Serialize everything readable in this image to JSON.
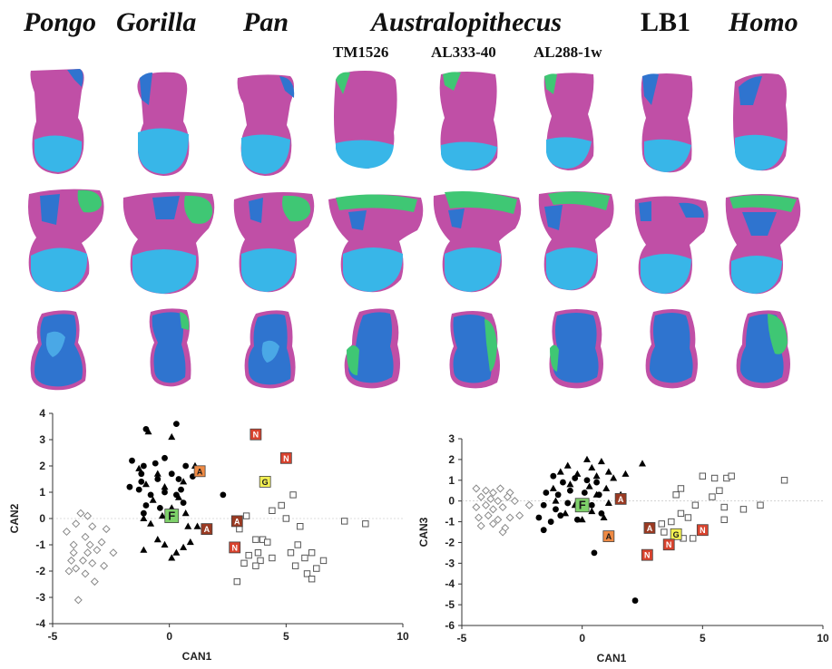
{
  "header": {
    "taxa": [
      "Pongo",
      "Gorilla",
      "Pan",
      "Australopithecus",
      "LB1",
      "Homo"
    ],
    "specimens": [
      "TM1526",
      "AL333-40",
      "AL288-1w"
    ]
  },
  "colors": {
    "articular_facet": "#c04fa6",
    "navicular_facet": "#38b6e8",
    "cuboid_facet": "#2f74cf",
    "medial_facet": "#3fc774",
    "marker_A": "#ef8a44",
    "marker_N": "#d9432e",
    "marker_G": "#f2ef52",
    "marker_F": "#7ed16a",
    "marker_dark_A": "#9a3a22"
  },
  "chart_data": [
    {
      "type": "scatter",
      "xlabel": "CAN1",
      "ylabel": "CAN2",
      "xlim": [
        -5,
        10
      ],
      "ylim": [
        -4,
        4
      ],
      "xticks": [
        -5,
        0,
        5,
        10
      ],
      "yticks": [
        -4,
        -3,
        -2,
        -1,
        0,
        1,
        2,
        3,
        4
      ],
      "series": [
        {
          "marker": "circle",
          "points": [
            [
              -1.0,
              3.4
            ],
            [
              0.3,
              3.6
            ],
            [
              -1.6,
              2.2
            ],
            [
              -1.1,
              2.0
            ],
            [
              -0.6,
              2.1
            ],
            [
              -0.2,
              2.3
            ],
            [
              0.7,
              2.0
            ],
            [
              -1.2,
              1.7
            ],
            [
              -0.5,
              1.5
            ],
            [
              0.1,
              1.7
            ],
            [
              0.4,
              1.5
            ],
            [
              1.0,
              1.6
            ],
            [
              -1.7,
              1.2
            ],
            [
              -1.3,
              1.1
            ],
            [
              -0.8,
              0.9
            ],
            [
              -0.2,
              1.0
            ],
            [
              0.3,
              0.9
            ],
            [
              -1.0,
              0.5
            ],
            [
              -0.4,
              0.4
            ],
            [
              0.6,
              0.6
            ],
            [
              -1.1,
              0.2
            ],
            [
              2.3,
              0.9
            ],
            [
              -1.2,
              1.4
            ],
            [
              0.5,
              1.1
            ]
          ]
        },
        {
          "marker": "triangle",
          "points": [
            [
              -0.9,
              3.3
            ],
            [
              0.1,
              3.1
            ],
            [
              -1.3,
              1.9
            ],
            [
              -0.5,
              1.7
            ],
            [
              0.6,
              1.4
            ],
            [
              -1.0,
              1.3
            ],
            [
              -0.2,
              1.2
            ],
            [
              0.4,
              0.8
            ],
            [
              -0.7,
              0.7
            ],
            [
              0.1,
              0.4
            ],
            [
              0.7,
              0.2
            ],
            [
              -0.3,
              0.1
            ],
            [
              -1.1,
              0.0
            ],
            [
              0.8,
              -0.3
            ],
            [
              1.2,
              -0.3
            ],
            [
              -0.2,
              -1.0
            ],
            [
              0.3,
              -1.3
            ],
            [
              -1.1,
              -1.2
            ],
            [
              -0.5,
              -0.8
            ],
            [
              0.9,
              -0.9
            ],
            [
              0.1,
              -1.5
            ],
            [
              -0.8,
              -0.2
            ],
            [
              1.1,
              2.0
            ],
            [
              0.6,
              -1.1
            ]
          ]
        },
        {
          "marker": "open-diamond",
          "points": [
            [
              -4.3,
              -2.0
            ],
            [
              -4.0,
              -1.9
            ],
            [
              -3.7,
              -1.6
            ],
            [
              -3.5,
              -1.3
            ],
            [
              -4.1,
              -1.0
            ],
            [
              -3.6,
              -0.7
            ],
            [
              -3.3,
              -0.3
            ],
            [
              -4.0,
              -0.2
            ],
            [
              -3.5,
              0.1
            ],
            [
              -3.8,
              0.2
            ],
            [
              -3.4,
              -1.0
            ],
            [
              -3.1,
              -1.2
            ],
            [
              -2.7,
              -0.4
            ],
            [
              -2.4,
              -1.3
            ],
            [
              -2.8,
              -1.8
            ],
            [
              -3.6,
              -2.1
            ],
            [
              -3.2,
              -2.4
            ],
            [
              -3.9,
              -3.1
            ],
            [
              -4.2,
              -1.6
            ],
            [
              -3.3,
              -1.7
            ],
            [
              -2.9,
              -0.9
            ],
            [
              -4.4,
              -0.5
            ],
            [
              -4.1,
              -1.3
            ]
          ]
        },
        {
          "marker": "open-square",
          "points": [
            [
              3.0,
              -0.4
            ],
            [
              3.3,
              0.1
            ],
            [
              4.4,
              0.3
            ],
            [
              4.8,
              0.5
            ],
            [
              5.3,
              0.9
            ],
            [
              5.0,
              0.0
            ],
            [
              5.6,
              -0.3
            ],
            [
              4.0,
              -0.8
            ],
            [
              3.7,
              -0.8
            ],
            [
              4.2,
              -0.9
            ],
            [
              3.4,
              -1.4
            ],
            [
              3.8,
              -1.3
            ],
            [
              3.9,
              -1.6
            ],
            [
              4.4,
              -1.5
            ],
            [
              3.2,
              -1.7
            ],
            [
              3.7,
              -1.8
            ],
            [
              5.5,
              -1.0
            ],
            [
              5.2,
              -1.3
            ],
            [
              5.8,
              -1.5
            ],
            [
              6.1,
              -1.3
            ],
            [
              5.9,
              -2.1
            ],
            [
              6.3,
              -1.9
            ],
            [
              6.6,
              -1.6
            ],
            [
              6.1,
              -2.3
            ],
            [
              2.9,
              -2.4
            ],
            [
              7.5,
              -0.1
            ],
            [
              8.4,
              -0.2
            ],
            [
              5.4,
              -1.8
            ]
          ]
        }
      ],
      "labeled_points": [
        {
          "label": "N",
          "x": 3.7,
          "y": 3.2,
          "style": "N"
        },
        {
          "label": "N",
          "x": 5.0,
          "y": 2.3,
          "style": "N"
        },
        {
          "label": "G",
          "x": 4.1,
          "y": 1.4,
          "style": "G"
        },
        {
          "label": "A",
          "x": 1.3,
          "y": 1.8,
          "style": "A"
        },
        {
          "label": "F",
          "x": 0.1,
          "y": 0.1,
          "style": "F"
        },
        {
          "label": "A",
          "x": 1.6,
          "y": -0.4,
          "style": "A_dark"
        },
        {
          "label": "A",
          "x": 2.9,
          "y": -0.1,
          "style": "A_dark"
        },
        {
          "label": "N",
          "x": 2.8,
          "y": -1.1,
          "style": "N"
        }
      ]
    },
    {
      "type": "scatter",
      "xlabel": "CAN1",
      "ylabel": "CAN3",
      "xlim": [
        -5,
        10
      ],
      "ylim": [
        -6,
        3
      ],
      "xticks": [
        -5,
        0,
        5,
        10
      ],
      "yticks": [
        -6,
        -5,
        -4,
        -3,
        -2,
        -1,
        0,
        1,
        2,
        3
      ],
      "series": [
        {
          "marker": "circle",
          "points": [
            [
              -1.2,
              1.2
            ],
            [
              -0.8,
              0.9
            ],
            [
              -0.3,
              1.1
            ],
            [
              0.2,
              1.0
            ],
            [
              0.6,
              0.9
            ],
            [
              -1.5,
              0.4
            ],
            [
              -1.0,
              0.3
            ],
            [
              -0.5,
              0.5
            ],
            [
              0.1,
              0.4
            ],
            [
              0.7,
              0.3
            ],
            [
              -1.6,
              -0.2
            ],
            [
              -1.1,
              -0.4
            ],
            [
              -0.6,
              -0.1
            ],
            [
              -0.1,
              -0.3
            ],
            [
              0.4,
              -0.2
            ],
            [
              -1.8,
              -0.8
            ],
            [
              -1.3,
              -1.0
            ],
            [
              -0.2,
              -0.9
            ],
            [
              -1.6,
              -1.4
            ],
            [
              0.5,
              -2.5
            ],
            [
              2.2,
              -4.8
            ],
            [
              -0.9,
              -0.7
            ],
            [
              0.8,
              -0.6
            ]
          ]
        },
        {
          "marker": "triangle",
          "points": [
            [
              0.2,
              2.0
            ],
            [
              0.8,
              1.9
            ],
            [
              -0.6,
              1.7
            ],
            [
              0.4,
              1.6
            ],
            [
              1.1,
              1.4
            ],
            [
              -0.9,
              1.4
            ],
            [
              -0.2,
              1.3
            ],
            [
              0.6,
              1.2
            ],
            [
              1.3,
              1.1
            ],
            [
              -0.5,
              0.8
            ],
            [
              0.3,
              0.7
            ],
            [
              1.0,
              0.6
            ],
            [
              -1.2,
              0.6
            ],
            [
              0.6,
              0.3
            ],
            [
              1.1,
              -0.1
            ],
            [
              -0.3,
              -0.2
            ],
            [
              0.4,
              -0.5
            ],
            [
              -0.7,
              -0.6
            ],
            [
              0.0,
              -0.9
            ],
            [
              0.9,
              -0.8
            ],
            [
              1.6,
              0.3
            ],
            [
              2.5,
              1.8
            ],
            [
              1.8,
              1.3
            ],
            [
              -1.1,
              0.0
            ]
          ]
        },
        {
          "marker": "open-diamond",
          "points": [
            [
              -4.4,
              0.6
            ],
            [
              -4.0,
              0.5
            ],
            [
              -3.7,
              0.4
            ],
            [
              -3.4,
              0.6
            ],
            [
              -3.0,
              0.4
            ],
            [
              -4.2,
              0.2
            ],
            [
              -3.8,
              0.1
            ],
            [
              -3.5,
              0.0
            ],
            [
              -3.1,
              0.2
            ],
            [
              -2.8,
              0.0
            ],
            [
              -4.4,
              -0.3
            ],
            [
              -4.0,
              -0.2
            ],
            [
              -3.7,
              -0.4
            ],
            [
              -3.3,
              -0.3
            ],
            [
              -2.2,
              -0.2
            ],
            [
              -4.3,
              -0.8
            ],
            [
              -3.9,
              -0.7
            ],
            [
              -3.5,
              -0.9
            ],
            [
              -3.0,
              -0.8
            ],
            [
              -2.6,
              -0.7
            ],
            [
              -4.2,
              -1.2
            ],
            [
              -3.7,
              -1.1
            ],
            [
              -3.2,
              -1.3
            ],
            [
              -3.3,
              -1.5
            ]
          ]
        },
        {
          "marker": "open-square",
          "points": [
            [
              5.0,
              1.2
            ],
            [
              5.5,
              1.1
            ],
            [
              6.0,
              1.1
            ],
            [
              6.2,
              1.2
            ],
            [
              4.1,
              0.6
            ],
            [
              3.9,
              0.3
            ],
            [
              5.4,
              0.2
            ],
            [
              5.7,
              0.5
            ],
            [
              4.7,
              -0.2
            ],
            [
              4.1,
              -0.6
            ],
            [
              4.4,
              -0.8
            ],
            [
              5.9,
              -0.3
            ],
            [
              6.7,
              -0.4
            ],
            [
              7.4,
              -0.2
            ],
            [
              8.4,
              1.0
            ],
            [
              3.7,
              -1.0
            ],
            [
              3.4,
              -1.5
            ],
            [
              4.2,
              -1.8
            ],
            [
              4.6,
              -1.8
            ],
            [
              3.3,
              -1.1
            ],
            [
              3.9,
              -1.5
            ],
            [
              5.9,
              -0.9
            ]
          ]
        }
      ],
      "labeled_points": [
        {
          "label": "A",
          "x": 1.6,
          "y": 0.1,
          "style": "A_dark"
        },
        {
          "label": "F",
          "x": 0.0,
          "y": -0.2,
          "style": "F"
        },
        {
          "label": "A",
          "x": 2.8,
          "y": -1.3,
          "style": "A_dark"
        },
        {
          "label": "N",
          "x": 5.0,
          "y": -1.4,
          "style": "N"
        },
        {
          "label": "A",
          "x": 1.1,
          "y": -1.7,
          "style": "A"
        },
        {
          "label": "G",
          "x": 3.9,
          "y": -1.6,
          "style": "G"
        },
        {
          "label": "N",
          "x": 3.6,
          "y": -2.1,
          "style": "N"
        },
        {
          "label": "N",
          "x": 2.7,
          "y": -2.6,
          "style": "N"
        }
      ]
    }
  ]
}
